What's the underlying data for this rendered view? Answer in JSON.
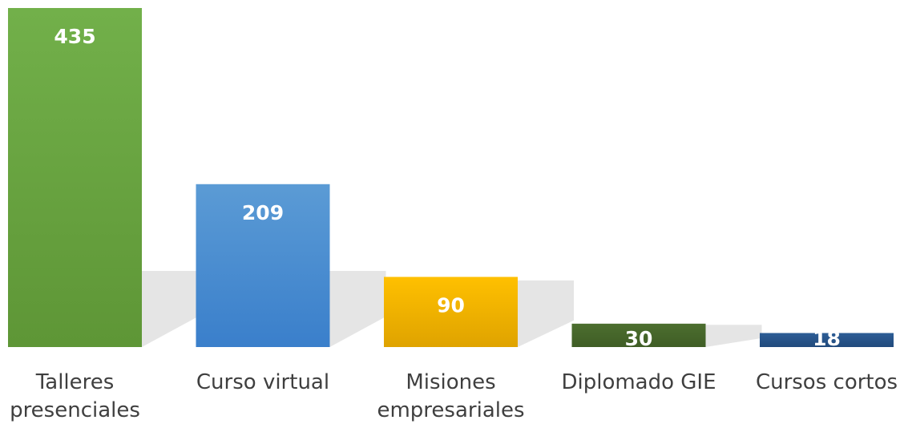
{
  "chart_data": {
    "type": "bar",
    "categories": [
      [
        "Talleres",
        "presenciales"
      ],
      [
        "Curso virtual"
      ],
      [
        "Misiones",
        "empresariales"
      ],
      [
        "Diplomado GIE"
      ],
      [
        "Cursos cortos"
      ]
    ],
    "values": [
      435,
      209,
      90,
      30,
      18
    ],
    "data_labels": [
      "435",
      "209",
      "90",
      "30",
      "18"
    ],
    "colors": [
      {
        "top": "#72b04a",
        "bottom": "#5e9636"
      },
      {
        "top": "#5b9bd5",
        "bottom": "#3a7fcb"
      },
      {
        "top": "#ffc000",
        "bottom": "#dfa300"
      },
      {
        "top": "#4c6e2f",
        "bottom": "#3f5d25"
      },
      {
        "top": "#2d5d96",
        "bottom": "#214a7c"
      }
    ],
    "ylim": [
      0,
      435
    ],
    "grid": false,
    "legend": "none"
  }
}
